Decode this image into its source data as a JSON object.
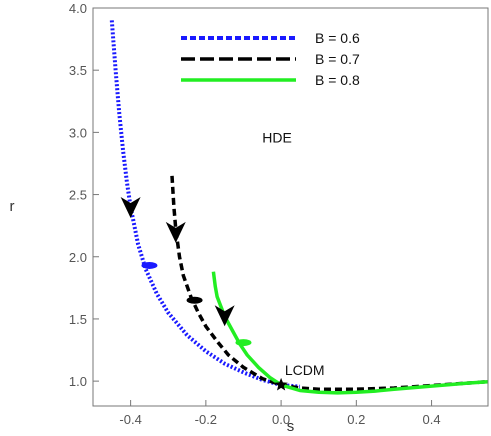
{
  "chart_data": {
    "type": "line",
    "title": "",
    "xlabel": "s",
    "ylabel": "r",
    "xlim": [
      -0.5,
      0.55
    ],
    "ylim": [
      0.8,
      4.0
    ],
    "xticks": [
      -0.4,
      -0.2,
      0.0,
      0.2,
      0.4
    ],
    "xtick_labels": [
      "-0.4",
      "-0.2",
      "0.0",
      "0.2",
      "0.4"
    ],
    "yticks": [
      1.0,
      1.5,
      2.0,
      2.5,
      3.0,
      3.5,
      4.0
    ],
    "ytick_labels": [
      "1.0",
      "1.5",
      "2.0",
      "2.5",
      "3.0",
      "3.5",
      "4.0"
    ],
    "grid": false,
    "legend": {
      "placement": "top-right"
    },
    "series": [
      {
        "name": "B = 0.6",
        "color": "#1a1aff",
        "style": "dotted",
        "x": [
          -0.45,
          -0.44,
          -0.43,
          -0.42,
          -0.41,
          -0.4,
          -0.38,
          -0.36,
          -0.33,
          -0.3,
          -0.25,
          -0.2,
          -0.15,
          -0.1,
          -0.05,
          0.0,
          0.05
        ],
        "y": [
          3.9,
          3.5,
          3.15,
          2.85,
          2.6,
          2.4,
          2.1,
          1.9,
          1.7,
          1.55,
          1.37,
          1.24,
          1.14,
          1.07,
          1.01,
          0.97,
          0.955
        ],
        "arrow": {
          "x": -0.4,
          "y": 2.4
        },
        "dot": {
          "x": -0.35,
          "y": 1.93
        }
      },
      {
        "name": "B = 0.7",
        "color": "#000000",
        "style": "dashed",
        "x": [
          -0.29,
          -0.285,
          -0.28,
          -0.27,
          -0.26,
          -0.24,
          -0.22,
          -0.2,
          -0.17,
          -0.14,
          -0.1,
          -0.05,
          0.0,
          0.05,
          0.1,
          0.2,
          0.3,
          0.4,
          0.5,
          0.55
        ],
        "y": [
          2.65,
          2.4,
          2.22,
          2.0,
          1.85,
          1.68,
          1.55,
          1.44,
          1.32,
          1.21,
          1.11,
          1.02,
          0.97,
          0.945,
          0.935,
          0.935,
          0.945,
          0.965,
          0.985,
          0.995
        ],
        "arrow": {
          "x": -0.28,
          "y": 2.2
        },
        "dot": {
          "x": -0.23,
          "y": 1.65
        }
      },
      {
        "name": "B = 0.8",
        "color": "#22ee22",
        "style": "solid",
        "x": [
          -0.18,
          -0.175,
          -0.17,
          -0.16,
          -0.15,
          -0.13,
          -0.11,
          -0.09,
          -0.06,
          -0.03,
          0.0,
          0.05,
          0.1,
          0.15,
          0.2,
          0.25,
          0.3,
          0.4,
          0.5,
          0.55
        ],
        "y": [
          1.88,
          1.76,
          1.68,
          1.6,
          1.52,
          1.41,
          1.3,
          1.21,
          1.11,
          1.03,
          0.97,
          0.925,
          0.91,
          0.905,
          0.91,
          0.92,
          0.935,
          0.96,
          0.985,
          0.995
        ],
        "arrow": {
          "x": -0.15,
          "y": 1.53
        },
        "dot": {
          "x": -0.1,
          "y": 1.31
        }
      }
    ],
    "annotations": [
      {
        "text": "HDE",
        "x": -0.05,
        "y": 2.92
      },
      {
        "text": "LCDM",
        "x": 0.01,
        "y": 1.05
      }
    ],
    "star_point": {
      "x": 0.0,
      "y": 0.97
    }
  }
}
